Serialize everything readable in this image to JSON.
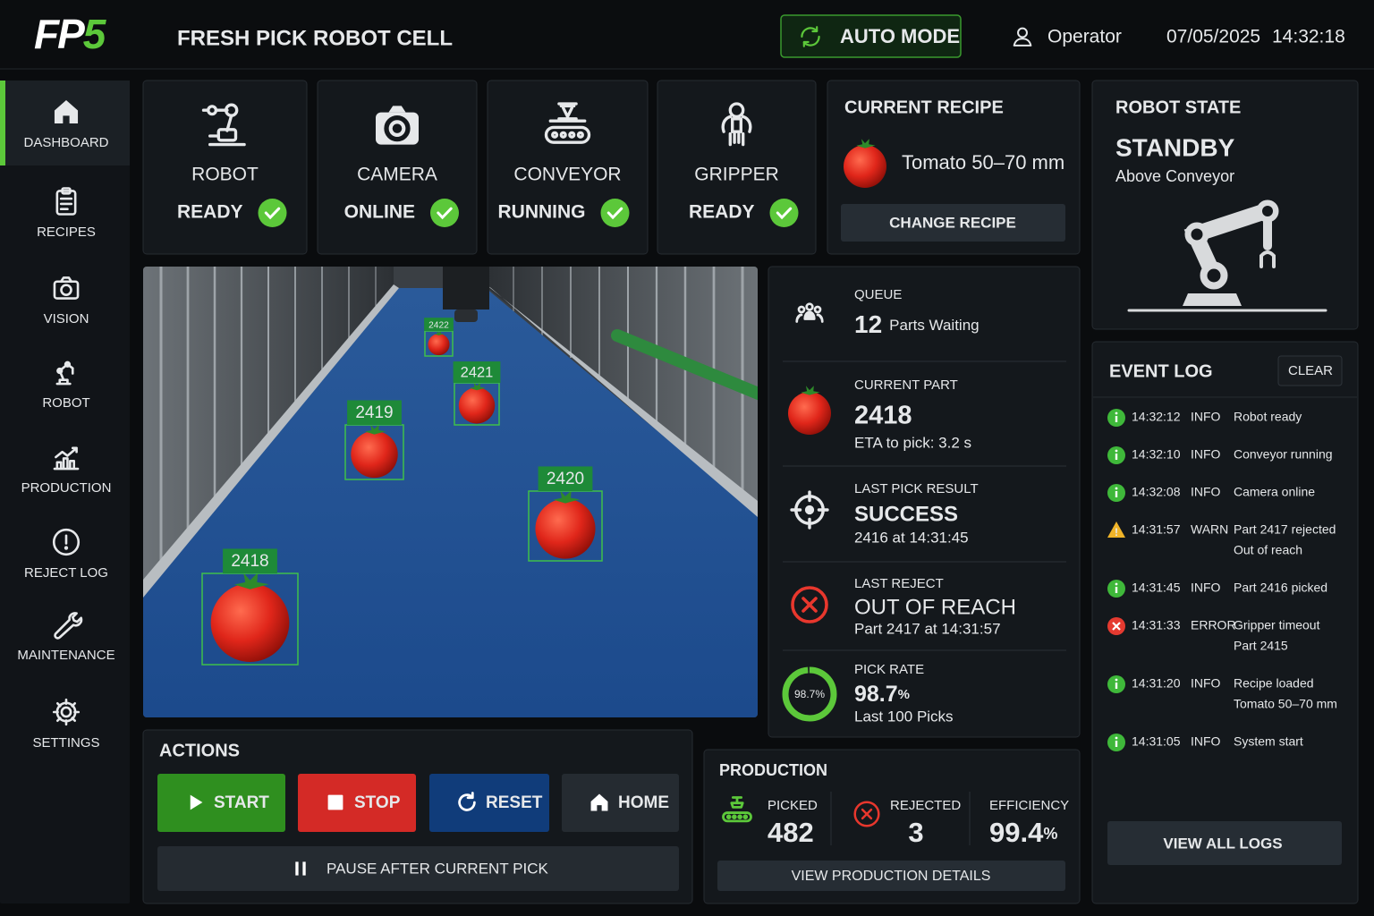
{
  "header": {
    "logo": [
      "FP",
      "5"
    ],
    "title": "FRESH PICK ROBOT CELL",
    "mode": "AUTO MODE",
    "user": "Operator",
    "date": "07/05/2025",
    "time": "14:32:18"
  },
  "nav": {
    "items": [
      "DASHBOARD",
      "RECIPES",
      "VISION",
      "ROBOT",
      "PRODUCTION",
      "REJECT LOG",
      "MAINTENANCE",
      "SETTINGS"
    ]
  },
  "status": [
    {
      "label": "ROBOT",
      "state": "READY"
    },
    {
      "label": "CAMERA",
      "state": "ONLINE"
    },
    {
      "label": "CONVEYOR",
      "state": "RUNNING"
    },
    {
      "label": "GRIPPER",
      "state": "READY"
    }
  ],
  "recipe": {
    "title": "CURRENT RECIPE",
    "name": "Tomato 50–70 mm",
    "button": "CHANGE RECIPE"
  },
  "robot_state": {
    "title": "ROBOT STATE",
    "state": "STANDBY",
    "position": "Above Conveyor"
  },
  "camera": {
    "detections": [
      2422,
      2421,
      2419,
      2420,
      2418
    ]
  },
  "queue": {
    "title": "QUEUE",
    "count": 12,
    "unit": "Parts Waiting"
  },
  "current_part": {
    "title": "CURRENT PART",
    "id": 2418,
    "eta": "ETA to pick: 3.2 s"
  },
  "last_pick": {
    "title": "LAST PICK RESULT",
    "result": "SUCCESS",
    "detail": "2416 at 14:31:45"
  },
  "last_reject": {
    "title": "LAST REJECT",
    "reason": "OUT OF REACH",
    "detail": "Part 2417 at 14:31:57"
  },
  "pick_rate": {
    "title": "PICK RATE",
    "value": 98.7,
    "unit": "%",
    "note": "Last 100 Picks"
  },
  "actions": {
    "title": "ACTIONS",
    "buttons": [
      "START",
      "STOP",
      "RESET",
      "HOME"
    ],
    "pause": "PAUSE AFTER CURRENT PICK"
  },
  "production": {
    "title": "PRODUCTION",
    "picked": {
      "label": "PICKED",
      "value": 482
    },
    "rejected": {
      "label": "REJECTED",
      "value": 3
    },
    "efficiency": {
      "label": "EFFICIENCY",
      "value": 99.4,
      "unit": "%"
    },
    "button": "VIEW PRODUCTION DETAILS"
  },
  "event_log": {
    "title": "EVENT LOG",
    "clear": "CLEAR",
    "button": "VIEW ALL LOGS",
    "entries": [
      {
        "time": "14:32:12",
        "level": "INFO",
        "lines": [
          "Robot ready"
        ],
        "icon": "info",
        "color": "#3fb83a"
      },
      {
        "time": "14:32:10",
        "level": "INFO",
        "lines": [
          "Conveyor running"
        ],
        "icon": "info",
        "color": "#3fb83a"
      },
      {
        "time": "14:32:08",
        "level": "INFO",
        "lines": [
          "Camera online"
        ],
        "icon": "info",
        "color": "#3fb83a"
      },
      {
        "time": "14:31:57",
        "level": "WARN",
        "lines": [
          "Part 2417 rejected",
          "Out of reach"
        ],
        "icon": "warn",
        "color": "#f0b429"
      },
      {
        "time": "14:31:45",
        "level": "INFO",
        "lines": [
          "Part 2416 picked"
        ],
        "icon": "info",
        "color": "#3fb83a"
      },
      {
        "time": "14:31:33",
        "level": "ERROR",
        "lines": [
          "Gripper timeout",
          "Part 2415"
        ],
        "icon": "error",
        "color": "#e53a30"
      },
      {
        "time": "14:31:20",
        "level": "INFO",
        "lines": [
          "Recipe loaded",
          "Tomato 50–70 mm"
        ],
        "icon": "info",
        "color": "#3fb83a"
      },
      {
        "time": "14:31:05",
        "level": "INFO",
        "lines": [
          "System start"
        ],
        "icon": "info",
        "color": "#3fb83a"
      }
    ]
  }
}
